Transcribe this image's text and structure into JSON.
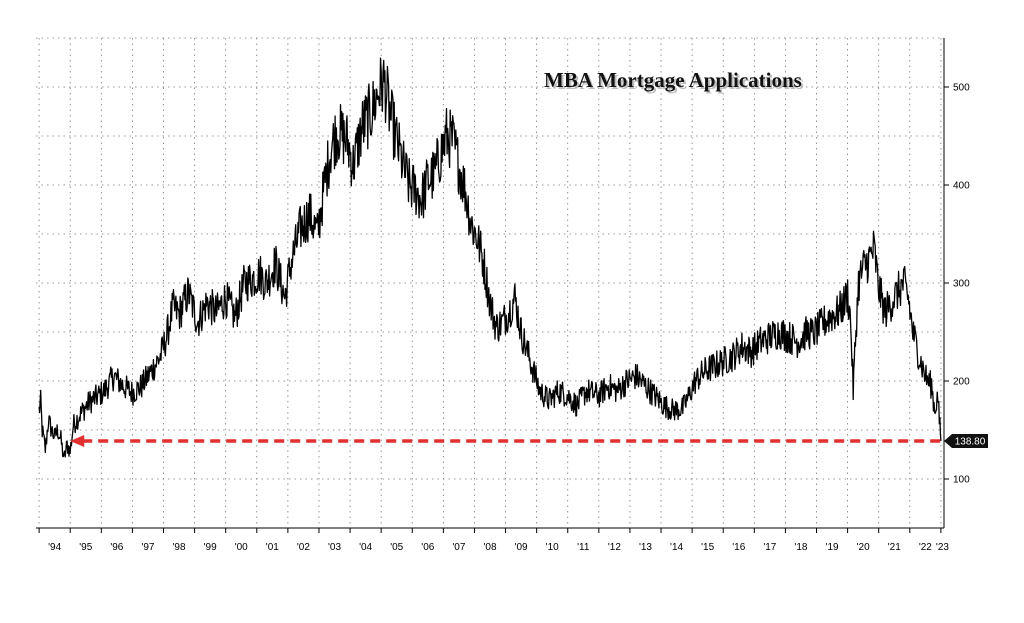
{
  "chart_data": {
    "type": "line",
    "title": "MBA Mortgage Applications",
    "xlabel": "",
    "ylabel": "",
    "x_tick_labels": [
      "'94",
      "'95",
      "'96",
      "'97",
      "'98",
      "'99",
      "'00",
      "'01",
      "'02",
      "'03",
      "'04",
      "'05",
      "'06",
      "'07",
      "'08",
      "'09",
      "'10",
      "'11",
      "'12",
      "'13",
      "'14",
      "'15",
      "'16",
      "'17",
      "'18",
      "'19",
      "'20",
      "'21",
      "'22",
      "'23"
    ],
    "y_ticks": [
      100,
      200,
      300,
      400,
      500
    ],
    "y_tick_labels": [
      "100",
      "200",
      "300",
      "400",
      "500"
    ],
    "ylim": [
      50,
      550
    ],
    "xlim": [
      1993.9,
      2023.1
    ],
    "y_axis_side": "right",
    "grid": true,
    "last_value_label": "138.80",
    "reference_line": {
      "value": 138.8,
      "from": 1995.0,
      "to": 2023.0,
      "color": "#e03030",
      "style": "dashed with arrow"
    },
    "series": [
      {
        "color": "#000000",
        "points": [
          [
            1994.0,
            170
          ],
          [
            1994.05,
            178
          ],
          [
            1994.1,
            150
          ],
          [
            1994.2,
            130
          ],
          [
            1994.3,
            160
          ],
          [
            1994.4,
            150
          ],
          [
            1994.5,
            143
          ],
          [
            1994.6,
            150
          ],
          [
            1994.7,
            140
          ],
          [
            1994.8,
            120
          ],
          [
            1994.9,
            135
          ],
          [
            1995.0,
            128
          ],
          [
            1995.1,
            155
          ],
          [
            1995.3,
            165
          ],
          [
            1995.6,
            178
          ],
          [
            1995.9,
            185
          ],
          [
            1996.1,
            190
          ],
          [
            1996.4,
            205
          ],
          [
            1996.7,
            195
          ],
          [
            1997.0,
            188
          ],
          [
            1997.3,
            195
          ],
          [
            1997.6,
            210
          ],
          [
            1997.9,
            225
          ],
          [
            1998.1,
            245
          ],
          [
            1998.3,
            275
          ],
          [
            1998.5,
            268
          ],
          [
            1998.8,
            290
          ],
          [
            1999.1,
            260
          ],
          [
            1999.4,
            280
          ],
          [
            1999.7,
            270
          ],
          [
            2000.0,
            285
          ],
          [
            2000.3,
            265
          ],
          [
            2000.6,
            300
          ],
          [
            2000.9,
            305
          ],
          [
            2001.1,
            310
          ],
          [
            2001.3,
            300
          ],
          [
            2001.6,
            320
          ],
          [
            2001.9,
            285
          ],
          [
            2002.1,
            320
          ],
          [
            2002.4,
            355
          ],
          [
            2002.7,
            370
          ],
          [
            2002.95,
            350
          ],
          [
            2003.2,
            405
          ],
          [
            2003.4,
            440
          ],
          [
            2003.6,
            455
          ],
          [
            2003.9,
            445
          ],
          [
            2004.1,
            420
          ],
          [
            2004.4,
            460
          ],
          [
            2004.7,
            475
          ],
          [
            2004.9,
            495
          ],
          [
            2005.1,
            505
          ],
          [
            2005.3,
            470
          ],
          [
            2005.5,
            445
          ],
          [
            2005.7,
            420
          ],
          [
            2005.9,
            400
          ],
          [
            2006.1,
            395
          ],
          [
            2006.3,
            385
          ],
          [
            2006.5,
            405
          ],
          [
            2006.7,
            410
          ],
          [
            2006.9,
            430
          ],
          [
            2007.1,
            450
          ],
          [
            2007.3,
            445
          ],
          [
            2007.5,
            420
          ],
          [
            2007.7,
            395
          ],
          [
            2007.9,
            360
          ],
          [
            2008.1,
            345
          ],
          [
            2008.3,
            320
          ],
          [
            2008.5,
            280
          ],
          [
            2008.7,
            255
          ],
          [
            2008.9,
            260
          ],
          [
            2009.1,
            270
          ],
          [
            2009.3,
            285
          ],
          [
            2009.5,
            250
          ],
          [
            2009.7,
            230
          ],
          [
            2009.9,
            210
          ],
          [
            2010.1,
            190
          ],
          [
            2010.4,
            180
          ],
          [
            2010.7,
            190
          ],
          [
            2011.0,
            185
          ],
          [
            2011.3,
            175
          ],
          [
            2011.6,
            190
          ],
          [
            2012.0,
            185
          ],
          [
            2012.3,
            195
          ],
          [
            2012.6,
            190
          ],
          [
            2012.9,
            200
          ],
          [
            2013.2,
            205
          ],
          [
            2013.5,
            195
          ],
          [
            2013.8,
            185
          ],
          [
            2014.1,
            175
          ],
          [
            2014.4,
            170
          ],
          [
            2014.7,
            172
          ],
          [
            2014.9,
            185
          ],
          [
            2015.1,
            200
          ],
          [
            2015.4,
            210
          ],
          [
            2015.7,
            215
          ],
          [
            2016.0,
            220
          ],
          [
            2016.3,
            225
          ],
          [
            2016.6,
            235
          ],
          [
            2016.9,
            230
          ],
          [
            2017.2,
            240
          ],
          [
            2017.5,
            245
          ],
          [
            2017.8,
            250
          ],
          [
            2018.1,
            245
          ],
          [
            2018.4,
            240
          ],
          [
            2018.7,
            250
          ],
          [
            2018.9,
            248
          ],
          [
            2019.1,
            255
          ],
          [
            2019.4,
            265
          ],
          [
            2019.7,
            270
          ],
          [
            2019.9,
            280
          ],
          [
            2020.0,
            290
          ],
          [
            2020.1,
            260
          ],
          [
            2020.18,
            190
          ],
          [
            2020.25,
            240
          ],
          [
            2020.35,
            300
          ],
          [
            2020.5,
            315
          ],
          [
            2020.7,
            325
          ],
          [
            2020.85,
            335
          ],
          [
            2021.0,
            295
          ],
          [
            2021.2,
            270
          ],
          [
            2021.4,
            280
          ],
          [
            2021.6,
            290
          ],
          [
            2021.8,
            300
          ],
          [
            2021.95,
            285
          ],
          [
            2022.1,
            250
          ],
          [
            2022.3,
            225
          ],
          [
            2022.5,
            205
          ],
          [
            2022.7,
            195
          ],
          [
            2022.8,
            170
          ],
          [
            2022.9,
            185
          ],
          [
            2022.95,
            160
          ],
          [
            2023.0,
            138.8
          ]
        ]
      }
    ]
  }
}
